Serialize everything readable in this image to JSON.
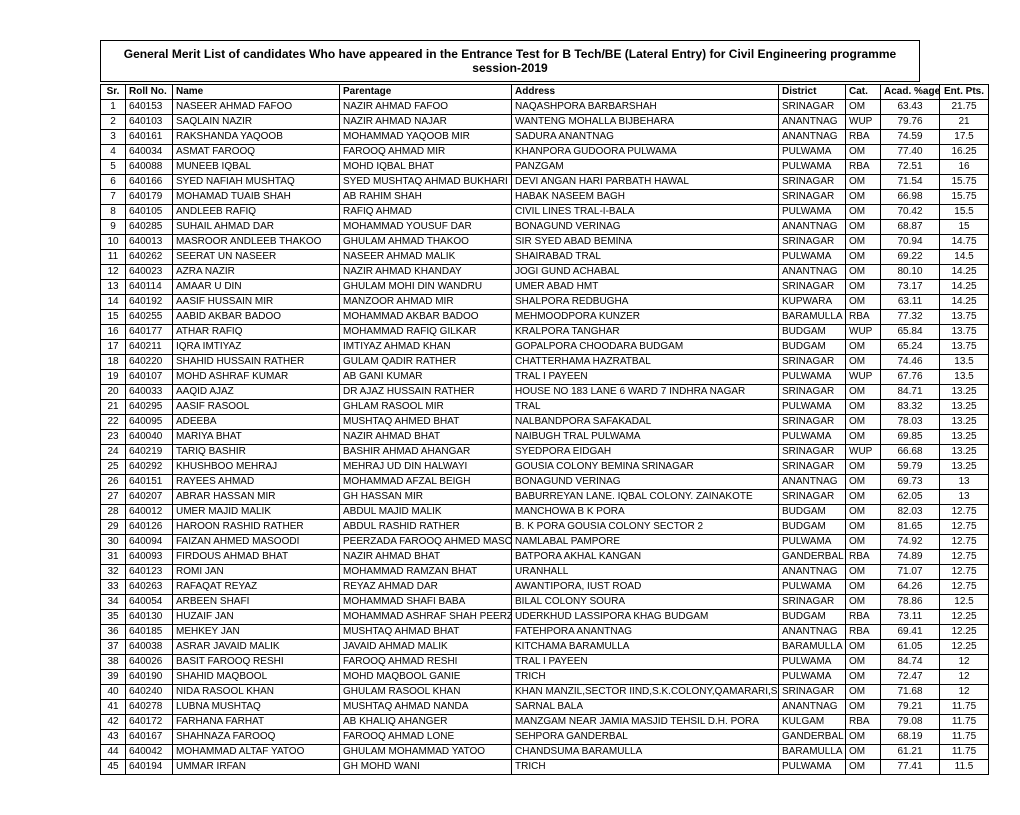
{
  "title": "General Merit List of candidates Who have appeared in the Entrance Test for B Tech/BE (Lateral Entry) for Civil Engineering programme session-2019",
  "columns": [
    "Sr.",
    "Roll No.",
    "Name",
    "Parentage",
    "Address",
    "District",
    "Cat.",
    "Acad. %age",
    "Ent. Pts."
  ],
  "rows": [
    [
      "1",
      "640153",
      "NASEER AHMAD FAFOO",
      "NAZIR AHMAD FAFOO",
      "NAQASHPORA BARBARSHAH",
      "SRINAGAR",
      "OM",
      "63.43",
      "21.75"
    ],
    [
      "2",
      "640103",
      "SAQLAIN NAZIR",
      "NAZIR AHMAD NAJAR",
      "WANTENG MOHALLA BIJBEHARA",
      "ANANTNAG",
      "WUP",
      "79.76",
      "21"
    ],
    [
      "3",
      "640161",
      "RAKSHANDA YAQOOB",
      "MOHAMMAD YAQOOB MIR",
      "SADURA ANANTNAG",
      "ANANTNAG",
      "RBA",
      "74.59",
      "17.5"
    ],
    [
      "4",
      "640034",
      "ASMAT FAROOQ",
      "FAROOQ AHMAD MIR",
      "KHANPORA GUDOORA PULWAMA",
      "PULWAMA",
      "OM",
      "77.40",
      "16.25"
    ],
    [
      "5",
      "640088",
      "MUNEEB IQBAL",
      "MOHD IQBAL BHAT",
      "PANZGAM",
      "PULWAMA",
      "RBA",
      "72.51",
      "16"
    ],
    [
      "6",
      "640166",
      "SYED NAFIAH MUSHTAQ",
      "SYED MUSHTAQ AHMAD BUKHARI",
      "DEVI ANGAN HARI PARBATH HAWAL",
      "SRINAGAR",
      "OM",
      "71.54",
      "15.75"
    ],
    [
      "7",
      "640179",
      "MOHAMAD TUAIB SHAH",
      "AB RAHIM SHAH",
      "HABAK NASEEM BAGH",
      "SRINAGAR",
      "OM",
      "66.98",
      "15.75"
    ],
    [
      "8",
      "640105",
      "ANDLEEB RAFIQ",
      "RAFIQ AHMAD",
      "CIVIL LINES TRAL-I-BALA",
      "PULWAMA",
      "OM",
      "70.42",
      "15.5"
    ],
    [
      "9",
      "640285",
      "SUHAIL AHMAD DAR",
      "MOHAMMAD YOUSUF DAR",
      "BONAGUND VERINAG",
      "ANANTNAG",
      "OM",
      "68.87",
      "15"
    ],
    [
      "10",
      "640013",
      "MASROOR ANDLEEB THAKOO",
      "GHULAM AHMAD THAKOO",
      "SIR SYED ABAD BEMINA",
      "SRINAGAR",
      "OM",
      "70.94",
      "14.75"
    ],
    [
      "11",
      "640262",
      "SEERAT UN NASEER",
      "NASEER AHMAD MALIK",
      "SHAIRABAD TRAL",
      "PULWAMA",
      "OM",
      "69.22",
      "14.5"
    ],
    [
      "12",
      "640023",
      "AZRA NAZIR",
      "NAZIR AHMAD KHANDAY",
      "JOGI GUND ACHABAL",
      "ANANTNAG",
      "OM",
      "80.10",
      "14.25"
    ],
    [
      "13",
      "640114",
      "AMAAR U DIN",
      "GHULAM MOHI DIN WANDRU",
      "UMER ABAD HMT",
      "SRINAGAR",
      "OM",
      "73.17",
      "14.25"
    ],
    [
      "14",
      "640192",
      "AASIF HUSSAIN MIR",
      "MANZOOR AHMAD MIR",
      "SHALPORA REDBUGHA",
      "KUPWARA",
      "OM",
      "63.11",
      "14.25"
    ],
    [
      "15",
      "640255",
      "AABID AKBAR BADOO",
      "MOHAMMAD AKBAR BADOO",
      "MEHMOODPORA KUNZER",
      "BARAMULLA",
      "RBA",
      "77.32",
      "13.75"
    ],
    [
      "16",
      "640177",
      "ATHAR RAFIQ",
      "MOHAMMAD RAFIQ GILKAR",
      "KRALPORA TANGHAR",
      "BUDGAM",
      "WUP",
      "65.84",
      "13.75"
    ],
    [
      "17",
      "640211",
      "IQRA IMTIYAZ",
      "IMTIYAZ AHMAD KHAN",
      "GOPALPORA CHOODARA BUDGAM",
      "BUDGAM",
      "OM",
      "65.24",
      "13.75"
    ],
    [
      "18",
      "640220",
      "SHAHID HUSSAIN RATHER",
      "GULAM QADIR RATHER",
      "CHATTERHAMA HAZRATBAL",
      "SRINAGAR",
      "OM",
      "74.46",
      "13.5"
    ],
    [
      "19",
      "640107",
      "MOHD ASHRAF KUMAR",
      "AB GANI KUMAR",
      "TRAL I PAYEEN",
      "PULWAMA",
      "WUP",
      "67.76",
      "13.5"
    ],
    [
      "20",
      "640033",
      "AAQID AJAZ",
      "DR AJAZ HUSSAIN RATHER",
      "HOUSE NO 183 LANE 6 WARD 7 INDHRA NAGAR",
      "SRINAGAR",
      "OM",
      "84.71",
      "13.25"
    ],
    [
      "21",
      "640295",
      "AASIF RASOOL",
      "GHLAM RASOOL MIR",
      "TRAL",
      "PULWAMA",
      "OM",
      "83.32",
      "13.25"
    ],
    [
      "22",
      "640095",
      "ADEEBA",
      "MUSHTAQ AHMED BHAT",
      "NALBANDPORA SAFAKADAL",
      "SRINAGAR",
      "OM",
      "78.03",
      "13.25"
    ],
    [
      "23",
      "640040",
      "MARIYA BHAT",
      "NAZIR AHMAD BHAT",
      "NAIBUGH TRAL PULWAMA",
      "PULWAMA",
      "OM",
      "69.85",
      "13.25"
    ],
    [
      "24",
      "640219",
      "TARIQ BASHIR",
      "BASHIR AHMAD AHANGAR",
      "SYEDPORA EIDGAH",
      "SRINAGAR",
      "WUP",
      "66.68",
      "13.25"
    ],
    [
      "25",
      "640292",
      "KHUSHBOO MEHRAJ",
      "MEHRAJ UD DIN HALWAYI",
      "GOUSIA COLONY BEMINA SRINAGAR",
      "SRINAGAR",
      "OM",
      "59.79",
      "13.25"
    ],
    [
      "26",
      "640151",
      "RAYEES AHMAD",
      "MOHAMMAD AFZAL BEIGH",
      "BONAGUND VERINAG",
      "ANANTNAG",
      "OM",
      "69.73",
      "13"
    ],
    [
      "27",
      "640207",
      "ABRAR HASSAN MIR",
      "GH HASSAN MIR",
      "BABURREYAN LANE. IQBAL COLONY. ZAINAKOTE",
      "SRINAGAR",
      "OM",
      "62.05",
      "13"
    ],
    [
      "28",
      "640012",
      "UMER MAJID MALIK",
      "ABDUL MAJID MALIK",
      "MANCHOWA B K PORA",
      "BUDGAM",
      "OM",
      "82.03",
      "12.75"
    ],
    [
      "29",
      "640126",
      "HAROON RASHID RATHER",
      "ABDUL RASHID RATHER",
      "B. K PORA GOUSIA COLONY SECTOR 2",
      "BUDGAM",
      "OM",
      "81.65",
      "12.75"
    ],
    [
      "30",
      "640094",
      "FAIZAN AHMED MASOODI",
      "PEERZADA FAROOQ AHMED MASOODI",
      "NAMLABAL PAMPORE",
      "PULWAMA",
      "OM",
      "74.92",
      "12.75"
    ],
    [
      "31",
      "640093",
      "FIRDOUS AHMAD BHAT",
      "NAZIR AHMAD BHAT",
      "BATPORA AKHAL KANGAN",
      "GANDERBAL",
      "RBA",
      "74.89",
      "12.75"
    ],
    [
      "32",
      "640123",
      "ROMI JAN",
      "MOHAMMAD RAMZAN BHAT",
      "URANHALL",
      "ANANTNAG",
      "OM",
      "71.07",
      "12.75"
    ],
    [
      "33",
      "640263",
      "RAFAQAT REYAZ",
      "REYAZ AHMAD DAR",
      "AWANTIPORA, IUST ROAD",
      "PULWAMA",
      "OM",
      "64.26",
      "12.75"
    ],
    [
      "34",
      "640054",
      "ARBEEN SHAFI",
      "MOHAMMAD SHAFI BABA",
      "BILAL COLONY SOURA",
      "SRINAGAR",
      "OM",
      "78.86",
      "12.5"
    ],
    [
      "35",
      "640130",
      "HUZAIF JAN",
      "MOHAMMAD ASHRAF SHAH PEERZADA",
      "UDERKHUD LASSIPORA KHAG BUDGAM",
      "BUDGAM",
      "RBA",
      "73.11",
      "12.25"
    ],
    [
      "36",
      "640185",
      "MEHKEY JAN",
      "MUSHTAQ AHMAD BHAT",
      "FATEHPORA ANANTNAG",
      "ANANTNAG",
      "RBA",
      "69.41",
      "12.25"
    ],
    [
      "37",
      "640038",
      "ASRAR JAVAID MALIK",
      "JAVAID AHMAD MALIK",
      "KITCHAMA BARAMULLA",
      "BARAMULLA",
      "OM",
      "61.05",
      "12.25"
    ],
    [
      "38",
      "640026",
      "BASIT FAROOQ RESHI",
      "FAROOQ AHMAD RESHI",
      "TRAL I PAYEEN",
      "PULWAMA",
      "OM",
      "84.74",
      "12"
    ],
    [
      "39",
      "640190",
      "SHAHID MAQBOOL",
      "MOHD MAQBOOL GANIE",
      "TRICH",
      "PULWAMA",
      "OM",
      "72.47",
      "12"
    ],
    [
      "40",
      "640240",
      "NIDA RASOOL KHAN",
      "GHULAM RASOOL KHAN",
      "KHAN MANZIL,SECTOR IIND,S.K.COLONY,QAMARARI,SRINAGAR",
      "SRINAGAR",
      "OM",
      "71.68",
      "12"
    ],
    [
      "41",
      "640278",
      "LUBNA MUSHTAQ",
      "MUSHTAQ AHMAD NANDA",
      "SARNAL BALA",
      "ANANTNAG",
      "OM",
      "79.21",
      "11.75"
    ],
    [
      "42",
      "640172",
      "FARHANA FARHAT",
      "AB KHALIQ AHANGER",
      "MANZGAM NEAR JAMIA MASJID TEHSIL D.H. PORA",
      "KULGAM",
      "RBA",
      "79.08",
      "11.75"
    ],
    [
      "43",
      "640167",
      "SHAHNAZA FAROOQ",
      "FAROOQ AHMAD LONE",
      "SEHPORA GANDERBAL",
      "GANDERBAL",
      "OM",
      "68.19",
      "11.75"
    ],
    [
      "44",
      "640042",
      "MOHAMMAD ALTAF YATOO",
      "GHULAM MOHAMMAD YATOO",
      "CHANDSUMA BARAMULLA",
      "BARAMULLA",
      "OM",
      "61.21",
      "11.75"
    ],
    [
      "45",
      "640194",
      "UMMAR IRFAN",
      "GH MOHD WANI",
      "TRICH",
      "PULWAMA",
      "OM",
      "77.41",
      "11.5"
    ]
  ]
}
